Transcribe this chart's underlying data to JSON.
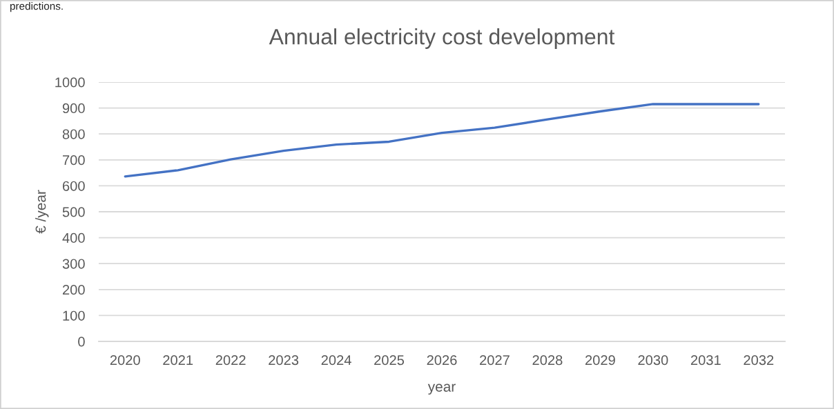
{
  "chart_data": {
    "type": "line",
    "title": "Annual electricity cost development",
    "xlabel": "year",
    "ylabel": "€ /year",
    "categories": [
      "2020",
      "2021",
      "2022",
      "2023",
      "2024",
      "2025",
      "2026",
      "2027",
      "2028",
      "2029",
      "2030",
      "2031",
      "2032"
    ],
    "series": [
      {
        "color": "#4472c4",
        "values": [
          636,
          660,
          702,
          735,
          759,
          770,
          804,
          824,
          856,
          887,
          915,
          915,
          915
        ]
      }
    ],
    "ylim": [
      0,
      1000
    ],
    "yticks": [
      0,
      100,
      200,
      300,
      400,
      500,
      600,
      700,
      800,
      900,
      1000
    ],
    "grid": "y",
    "annotations": [
      "predictions."
    ]
  }
}
